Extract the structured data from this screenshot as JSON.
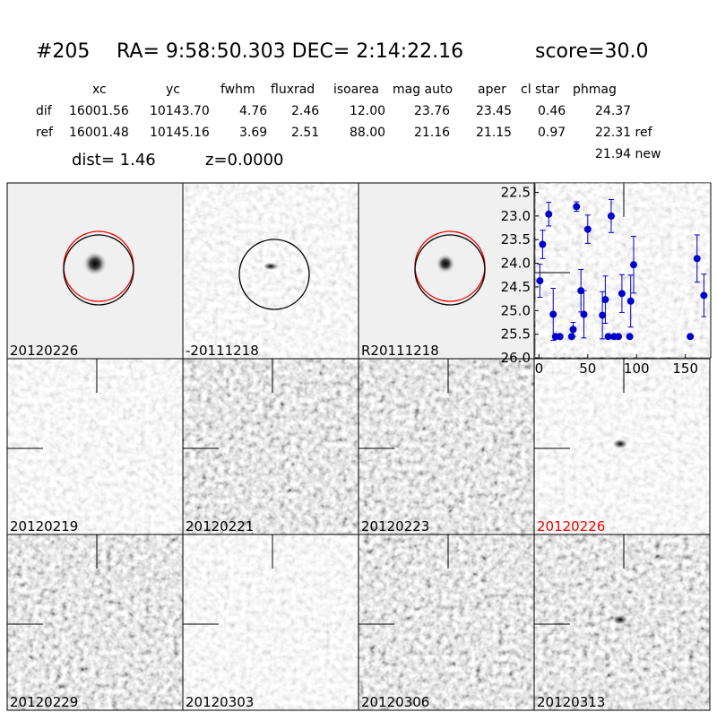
{
  "header": {
    "id": "#205",
    "coords": "RA= 9:58:50.303 DEC= 2:14:22.16",
    "score": "score=30.0"
  },
  "table": {
    "columns": [
      "xc",
      "yc",
      "fwhm",
      "fluxrad",
      "isoarea",
      "mag auto",
      "aper",
      "cl star",
      "phmag"
    ],
    "rows": [
      [
        "dif",
        "16001.56",
        "10143.70",
        "4.76",
        "2.46",
        "12.00",
        "23.76",
        "23.45",
        "0.46",
        "24.37"
      ],
      [
        "ref",
        "16001.48",
        "10145.16",
        "3.69",
        "2.51",
        "88.00",
        "21.16",
        "21.15",
        "0.97",
        "22.31 ref"
      ]
    ],
    "extra": "21.94 new",
    "dist": "dist=  1.46",
    "z": "z=0.0000"
  },
  "panels": [
    {
      "label": "20120226"
    },
    {
      "label": "-20111218"
    },
    {
      "label": "R20111218"
    },
    {
      "label": "20120219"
    },
    {
      "label": "20120221"
    },
    {
      "label": "20120223"
    },
    {
      "label": "20120226"
    },
    {
      "label": "20120229"
    },
    {
      "label": "20120303"
    },
    {
      "label": "20120306"
    },
    {
      "label": "20120313"
    }
  ],
  "chart_data": {
    "type": "scatter",
    "color": "#0000cc",
    "x": [
      0.9,
      3.7,
      10,
      14.6,
      17,
      21.5,
      33.5,
      35,
      38.5,
      43,
      46,
      50,
      65,
      68,
      71,
      74,
      77,
      81.5,
      85,
      93,
      94,
      97,
      155,
      162,
      169
    ],
    "values": [
      24.37,
      23.6,
      22.96,
      25.08,
      25.55,
      25.55,
      25.55,
      25.4,
      22.8,
      24.58,
      25.08,
      23.28,
      25.1,
      24.77,
      25.55,
      23.0,
      25.55,
      25.55,
      24.64,
      25.55,
      24.8,
      24.03,
      25.55,
      23.9,
      24.68
    ],
    "errors": [
      0.35,
      0.3,
      0.25,
      0.55,
      0,
      0,
      0,
      0.15,
      0.1,
      0.45,
      0.5,
      0.3,
      0.5,
      0.5,
      0,
      0.35,
      0,
      0,
      0.4,
      0,
      0.55,
      0.6,
      0,
      0.5,
      0.45
    ],
    "xlim": [
      -4,
      176
    ],
    "xticks": [
      0,
      50,
      100,
      150
    ],
    "ylim": [
      26.0,
      22.3
    ],
    "yticks": [
      {
        "value": 22.5,
        "label": "22.5"
      },
      {
        "value": 23.0,
        "label": "23.0"
      },
      {
        "value": 23.5,
        "label": "23.5"
      },
      {
        "value": 24.0,
        "label": "24.0"
      },
      {
        "value": 24.5,
        "label": "24.5"
      },
      {
        "value": 25.0,
        "label": "25.0"
      },
      {
        "value": 25.5,
        "label": "25.5"
      },
      {
        "value": 26.0,
        "label": "26.0"
      }
    ]
  }
}
